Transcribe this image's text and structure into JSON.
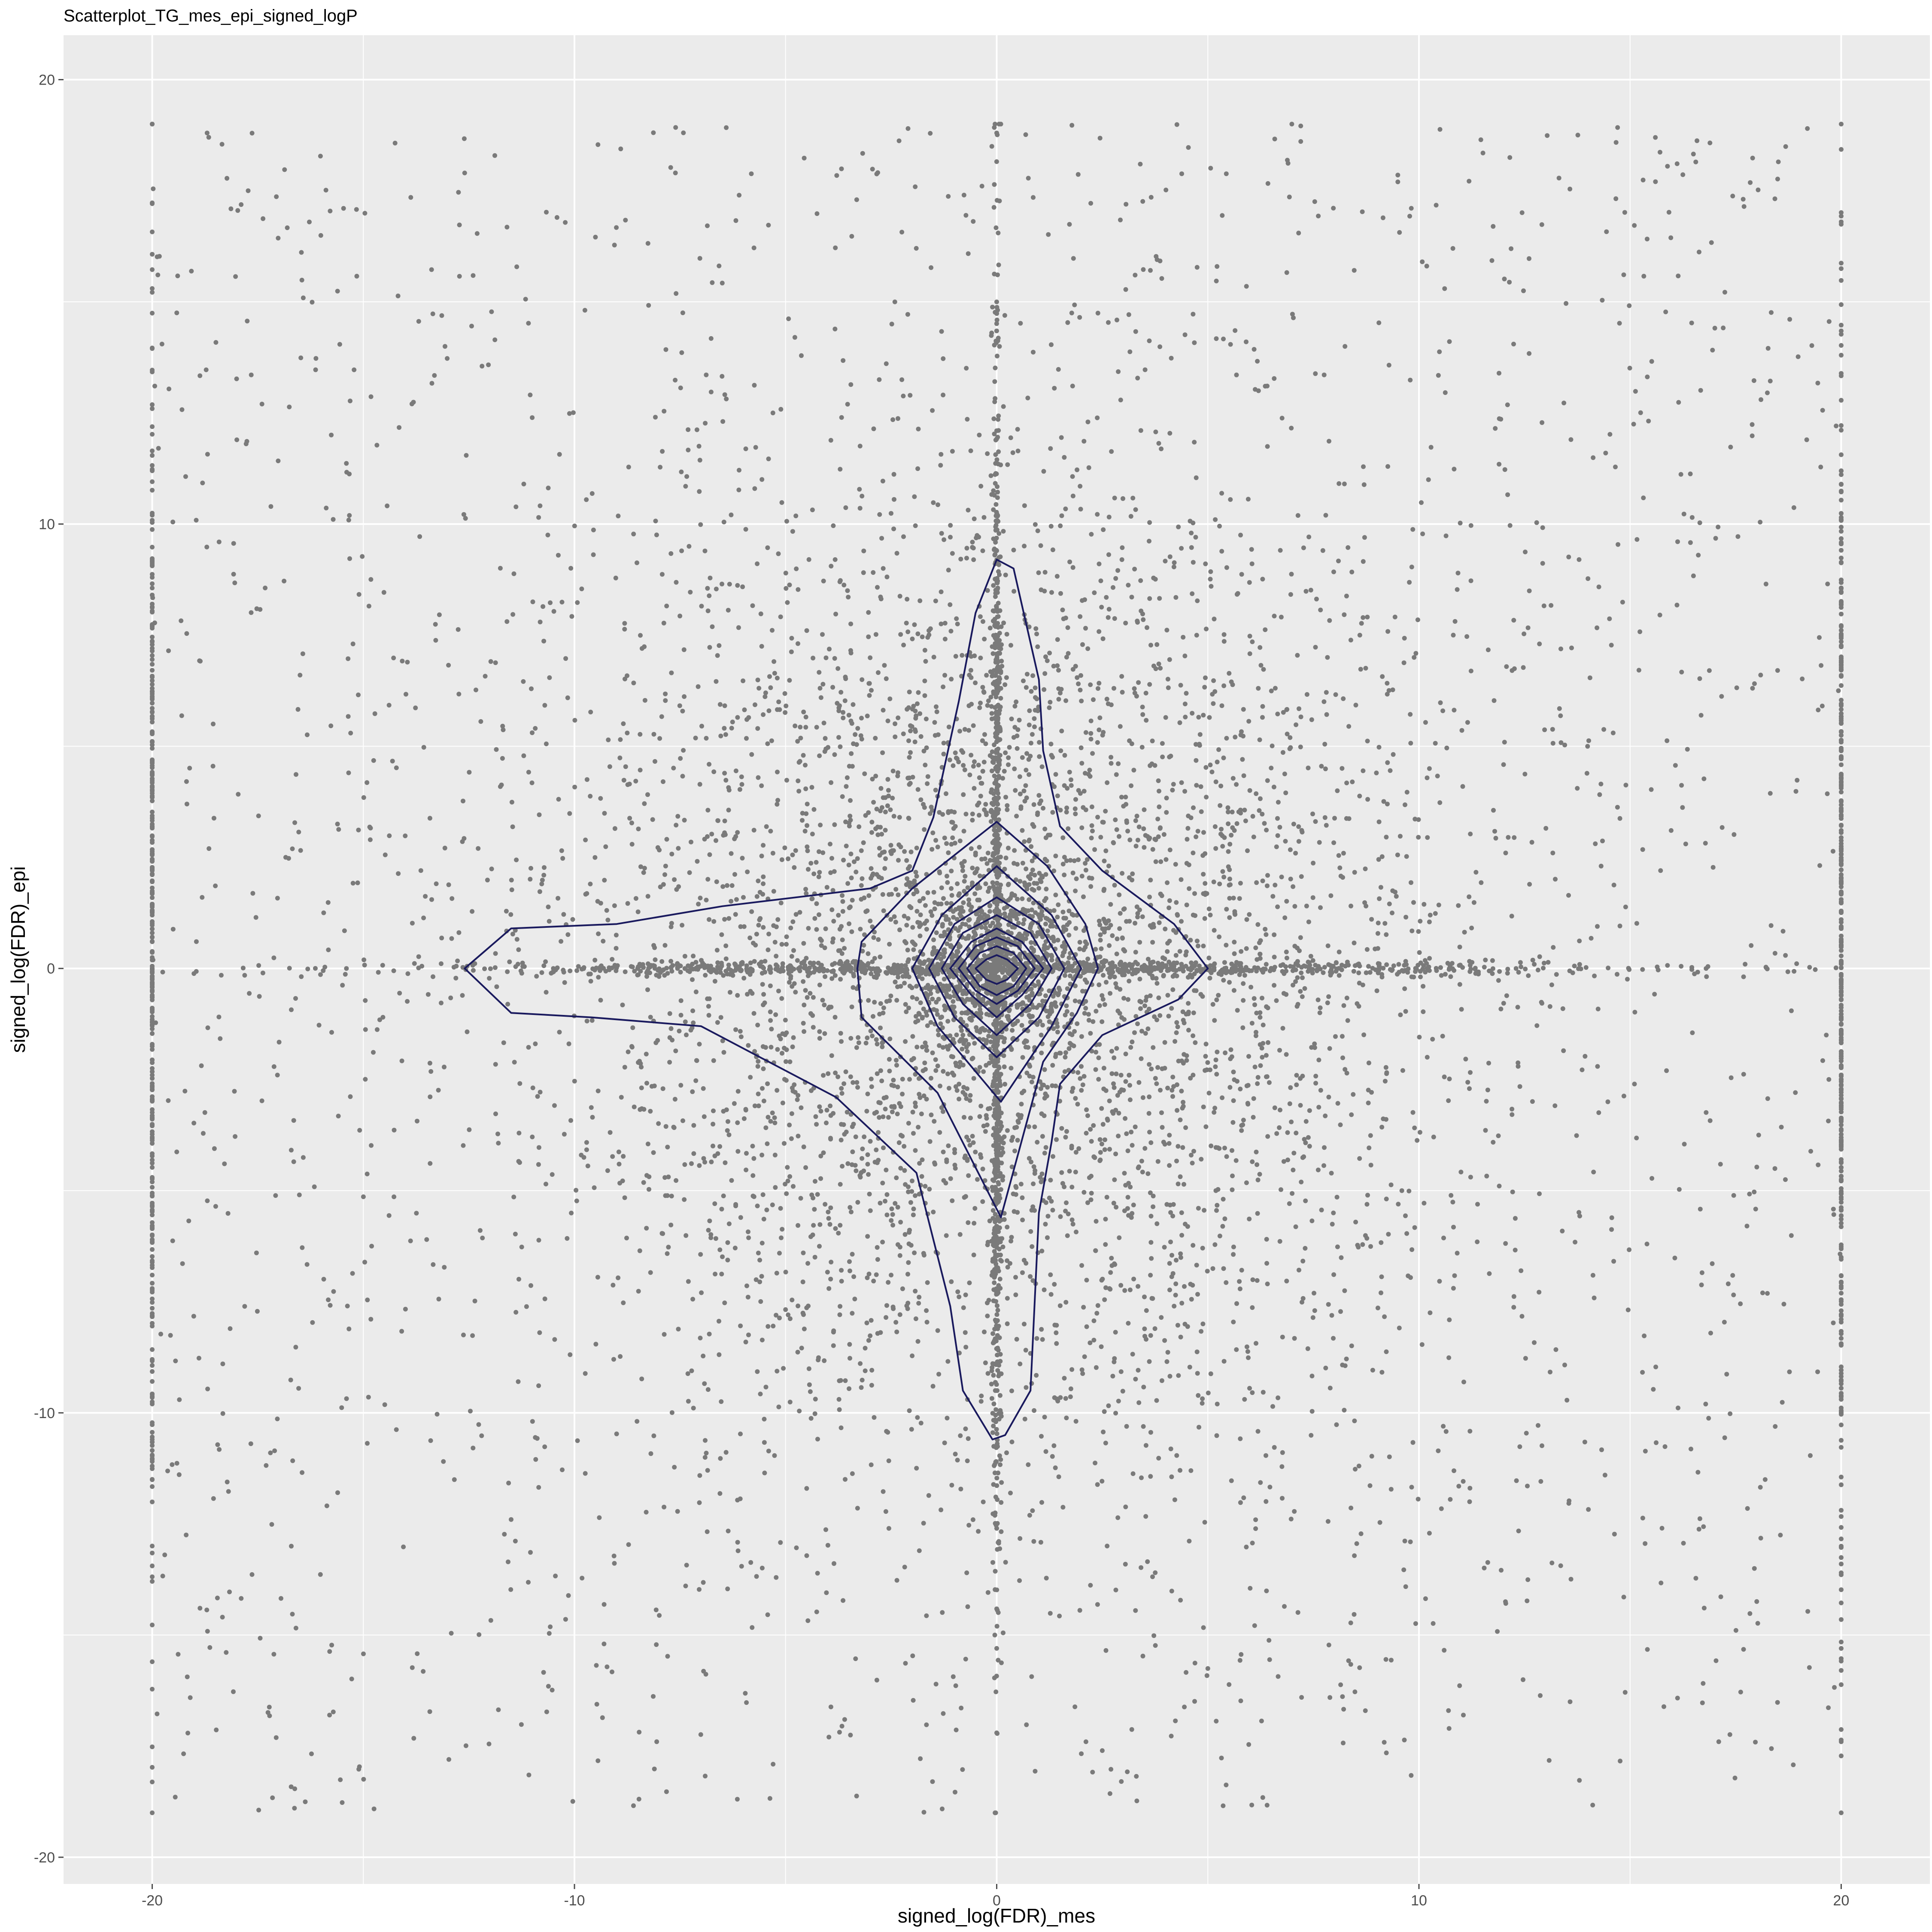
{
  "chart_data": {
    "type": "scatter",
    "title": "Scatterplot_TG_mes_epi_signed_logP",
    "xlabel": "signed_log(FDR)_mes",
    "ylabel": "signed_log(FDR)_epi",
    "xlim": [
      -22.1,
      22.1
    ],
    "ylim": [
      -20.6,
      21.0
    ],
    "x_ticks": [
      -20,
      -10,
      0,
      10,
      20
    ],
    "y_ticks": [
      -20,
      -10,
      0,
      10,
      20
    ],
    "grid": true,
    "legend": "none",
    "colors": {
      "panel": "#ebebeb",
      "grid": "#ffffff",
      "points": "#7a7a7a",
      "contour": "#1a1a5e",
      "text": "#000000",
      "ticks": "#4d4d4d"
    },
    "series": [
      {
        "kind": "points",
        "sample_points": [
          [
            -20,
            15.3
          ],
          [
            -20,
            10.2
          ],
          [
            -20,
            5.1
          ],
          [
            -20,
            0.0
          ],
          [
            -20,
            -2.4
          ],
          [
            -20,
            -9.8
          ],
          [
            -20,
            -15.6
          ],
          [
            20,
            16.8
          ],
          [
            20,
            13.8
          ],
          [
            20,
            8.2
          ],
          [
            20,
            0.1
          ],
          [
            20,
            -4.3
          ],
          [
            20,
            -13.6
          ],
          [
            20,
            -17.4
          ],
          [
            0,
            18.8
          ],
          [
            0,
            15.0
          ],
          [
            0,
            12.1
          ],
          [
            0,
            9.4
          ],
          [
            0,
            6.3
          ],
          [
            0,
            3.0
          ],
          [
            0,
            0.0
          ],
          [
            0,
            -2.7
          ],
          [
            0,
            -6.1
          ],
          [
            0,
            -9.5
          ],
          [
            0,
            -12.6
          ],
          [
            0,
            -15.3
          ],
          [
            0,
            -17.2
          ],
          [
            -15.4,
            0.0
          ],
          [
            -10.5,
            0.0
          ],
          [
            -6.2,
            0.1
          ],
          [
            -3.0,
            0.0
          ],
          [
            3.2,
            0.0
          ],
          [
            7.4,
            0.0
          ],
          [
            12.3,
            0.0
          ],
          [
            16.8,
            0.0
          ],
          [
            -18.7,
            18.8
          ],
          [
            -12.6,
            17.9
          ],
          [
            -6.1,
            17.4
          ],
          [
            -2.1,
            18.9
          ],
          [
            3.4,
            18.1
          ],
          [
            9.5,
            17.7
          ],
          [
            15.6,
            18.7
          ],
          [
            19.2,
            18.9
          ],
          [
            -17.4,
            12.7
          ],
          [
            -11.2,
            10.9
          ],
          [
            -5.3,
            12.5
          ],
          [
            1.6,
            11.5
          ],
          [
            6.2,
            13.0
          ],
          [
            13.6,
            11.9
          ],
          [
            18.1,
            12.8
          ],
          [
            -16.5,
            6.6
          ],
          [
            -8.4,
            7.2
          ],
          [
            -3.5,
            5.7
          ],
          [
            2.4,
            6.3
          ],
          [
            8.6,
            7.5
          ],
          [
            14.6,
            5.3
          ],
          [
            -13.5,
            -6.1
          ],
          [
            -7.4,
            -5.2
          ],
          [
            -2.5,
            -6.9
          ],
          [
            3.1,
            -5.4
          ],
          [
            9.1,
            -7.3
          ],
          [
            15.4,
            -6.2
          ],
          [
            -17.2,
            -10.9
          ],
          [
            -11.5,
            -12.4
          ],
          [
            -4.5,
            -11.7
          ],
          [
            4.6,
            -11.3
          ],
          [
            11.2,
            -12.0
          ],
          [
            18.2,
            -11.5
          ],
          [
            -15.8,
            -16.8
          ],
          [
            -9.3,
            -15.2
          ],
          [
            -3.6,
            -16.9
          ],
          [
            2.5,
            -17.6
          ],
          [
            10.7,
            -16.7
          ],
          [
            17.1,
            -17.4
          ],
          [
            -1.2,
            1.1
          ],
          [
            1.3,
            -0.8
          ],
          [
            -0.8,
            -1.5
          ],
          [
            0.9,
            2.1
          ],
          [
            -1.9,
            -0.4
          ],
          [
            2.1,
            0.6
          ],
          [
            -0.5,
            2.6
          ],
          [
            0.6,
            -2.8
          ]
        ]
      },
      {
        "kind": "density_contours",
        "levels": [
          [
            [
              -12.6,
              0.0
            ],
            [
              -11.5,
              0.9
            ],
            [
              -9.0,
              1.0
            ],
            [
              -6.5,
              1.4
            ],
            [
              -3.0,
              1.8
            ],
            [
              -2.0,
              2.2
            ],
            [
              -1.5,
              3.4
            ],
            [
              -0.9,
              6.0
            ],
            [
              -0.5,
              8.0
            ],
            [
              0.0,
              9.2
            ],
            [
              0.4,
              9.0
            ],
            [
              1.0,
              6.5
            ],
            [
              1.1,
              4.9
            ],
            [
              1.5,
              3.2
            ],
            [
              2.5,
              2.2
            ],
            [
              4.2,
              1.0
            ],
            [
              5.0,
              0.0
            ],
            [
              4.3,
              -0.7
            ],
            [
              2.5,
              -1.5
            ],
            [
              1.5,
              -2.6
            ],
            [
              1.3,
              -3.9
            ],
            [
              1.0,
              -5.5
            ],
            [
              0.9,
              -7.5
            ],
            [
              0.8,
              -9.5
            ],
            [
              0.2,
              -10.5
            ],
            [
              -0.1,
              -10.6
            ],
            [
              -0.8,
              -9.5
            ],
            [
              -1.1,
              -7.6
            ],
            [
              -1.9,
              -4.6
            ],
            [
              -3.8,
              -2.9
            ],
            [
              -7.0,
              -1.3
            ],
            [
              -9.6,
              -1.1
            ],
            [
              -11.5,
              -1.0
            ],
            [
              -12.6,
              0.0
            ]
          ],
          [
            [
              -3.3,
              0.0
            ],
            [
              -3.2,
              0.6
            ],
            [
              -2.0,
              1.8
            ],
            [
              0.0,
              3.3
            ],
            [
              1.2,
              2.3
            ],
            [
              2.1,
              1.0
            ],
            [
              2.4,
              0.0
            ],
            [
              1.9,
              -1.0
            ],
            [
              1.1,
              -2.1
            ],
            [
              0.1,
              -5.6
            ],
            [
              -1.4,
              -2.8
            ],
            [
              -3.2,
              -1.1
            ],
            [
              -3.3,
              0.0
            ]
          ],
          [
            [
              -2.0,
              0.0
            ],
            [
              -1.3,
              1.2
            ],
            [
              0.0,
              2.3
            ],
            [
              1.3,
              1.2
            ],
            [
              2.0,
              0.0
            ],
            [
              1.3,
              -1.3
            ],
            [
              0.1,
              -3.0
            ],
            [
              -1.4,
              -1.3
            ],
            [
              -2.0,
              0.0
            ]
          ],
          [
            [
              -1.6,
              0.0
            ],
            [
              -1.0,
              1.0
            ],
            [
              0.0,
              1.6
            ],
            [
              1.0,
              1.0
            ],
            [
              1.6,
              0.0
            ],
            [
              1.0,
              -1.1
            ],
            [
              0.0,
              -2.0
            ],
            [
              -1.0,
              -1.1
            ],
            [
              -1.6,
              0.0
            ]
          ],
          [
            [
              -1.3,
              0.0
            ],
            [
              -0.8,
              0.8
            ],
            [
              0.0,
              1.2
            ],
            [
              0.8,
              0.8
            ],
            [
              1.3,
              0.0
            ],
            [
              0.8,
              -0.8
            ],
            [
              0.0,
              -1.5
            ],
            [
              -0.8,
              -0.8
            ],
            [
              -1.3,
              0.0
            ]
          ],
          [
            [
              -1.1,
              0.0
            ],
            [
              -0.6,
              0.6
            ],
            [
              0.0,
              0.9
            ],
            [
              0.6,
              0.6
            ],
            [
              1.1,
              0.0
            ],
            [
              0.6,
              -0.6
            ],
            [
              0.0,
              -1.1
            ],
            [
              -0.6,
              -0.6
            ],
            [
              -1.1,
              0.0
            ]
          ],
          [
            [
              -0.9,
              0.0
            ],
            [
              -0.5,
              0.5
            ],
            [
              0.0,
              0.7
            ],
            [
              0.5,
              0.5
            ],
            [
              0.9,
              0.0
            ],
            [
              0.5,
              -0.5
            ],
            [
              0.0,
              -0.8
            ],
            [
              -0.5,
              -0.5
            ],
            [
              -0.9,
              0.0
            ]
          ],
          [
            [
              -0.7,
              0.0
            ],
            [
              -0.4,
              0.35
            ],
            [
              0.0,
              0.5
            ],
            [
              0.4,
              0.35
            ],
            [
              0.7,
              0.0
            ],
            [
              0.4,
              -0.4
            ],
            [
              0.0,
              -0.6
            ],
            [
              -0.4,
              -0.4
            ],
            [
              -0.7,
              0.0
            ]
          ],
          [
            [
              -0.5,
              0.0
            ],
            [
              -0.25,
              0.2
            ],
            [
              0.0,
              0.3
            ],
            [
              0.25,
              0.2
            ],
            [
              0.5,
              0.0
            ],
            [
              0.25,
              -0.25
            ],
            [
              0.0,
              -0.35
            ],
            [
              -0.25,
              -0.25
            ],
            [
              -0.5,
              0.0
            ]
          ]
        ]
      }
    ]
  }
}
